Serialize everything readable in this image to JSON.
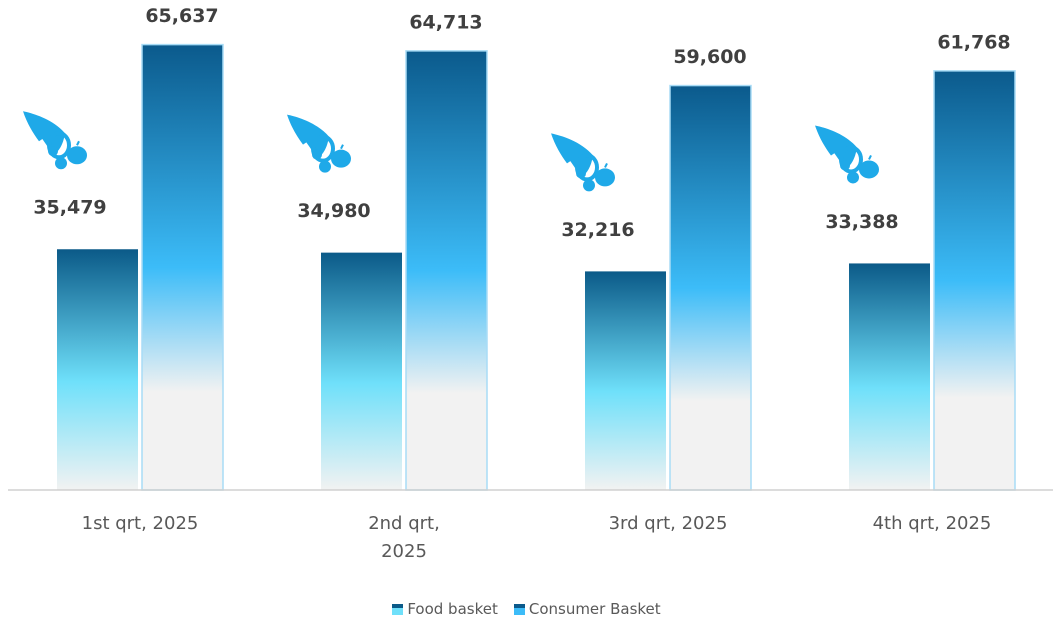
{
  "chart_data": {
    "type": "bar",
    "categories": [
      "1st qrt, 2025",
      "2nd qrt, 2025",
      "3rd qrt, 2025",
      "4th qrt, 2025"
    ],
    "series": [
      {
        "name": "Food basket",
        "color": "#0b5a88",
        "values": [
          35479,
          34980,
          32216,
          33388
        ],
        "value_labels": [
          "35,479",
          "34,980",
          "32,216",
          "33,388"
        ]
      },
      {
        "name": "Consumer Basket",
        "color": "#0b5a8c",
        "values": [
          65637,
          64713,
          59600,
          61768
        ],
        "value_labels": [
          "65,637",
          "64,713",
          "59,600",
          "61,768"
        ]
      }
    ],
    "ylim": [
      0,
      70000
    ]
  }
}
